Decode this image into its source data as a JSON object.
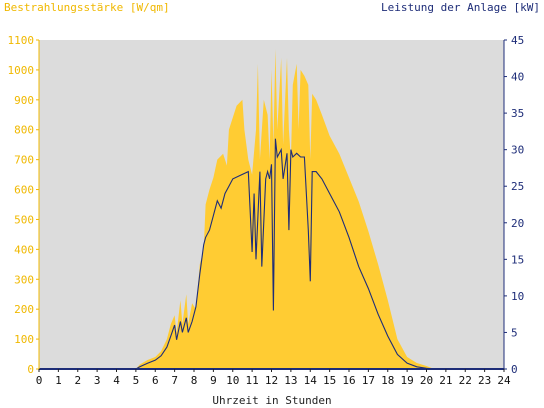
{
  "chart_data": {
    "type": "area",
    "left_axis_label": "Bestrahlungsstärke [W/qm]",
    "right_axis_label": "Leistung der Anlage [kW]",
    "xlabel": "Uhrzeit in Stunden",
    "xlim": [
      0,
      24
    ],
    "xticks": [
      "0",
      "1",
      "2",
      "3",
      "4",
      "5",
      "6",
      "7",
      "8",
      "9",
      "10",
      "11",
      "12",
      "13",
      "14",
      "15",
      "16",
      "17",
      "18",
      "19",
      "20",
      "21",
      "22",
      "23",
      "24"
    ],
    "ylim_left": [
      0,
      1100
    ],
    "yticks_left": [
      "0",
      "100",
      "200",
      "300",
      "400",
      "500",
      "600",
      "700",
      "800",
      "900",
      "1000",
      "1100"
    ],
    "ylim_right": [
      0,
      45
    ],
    "yticks_right": [
      "0",
      "5",
      "10",
      "15",
      "20",
      "25",
      "30",
      "35",
      "40",
      "45"
    ],
    "grid": false,
    "colors": {
      "irradiance": "#ffcc33",
      "power": "#1e2d78",
      "plot_bg": "#dcdcdc",
      "left_axis": "#f0b800",
      "right_axis": "#1e2d78"
    },
    "series": [
      {
        "name": "Bestrahlungsstärke [W/qm]",
        "axis": "left",
        "points": [
          [
            0,
            0
          ],
          [
            5.0,
            0
          ],
          [
            5.2,
            15
          ],
          [
            5.6,
            30
          ],
          [
            6.0,
            40
          ],
          [
            6.3,
            60
          ],
          [
            6.6,
            100
          ],
          [
            6.8,
            150
          ],
          [
            7.0,
            180
          ],
          [
            7.1,
            120
          ],
          [
            7.3,
            230
          ],
          [
            7.4,
            150
          ],
          [
            7.6,
            250
          ],
          [
            7.7,
            150
          ],
          [
            7.9,
            220
          ],
          [
            8.1,
            200
          ],
          [
            8.3,
            350
          ],
          [
            8.5,
            400
          ],
          [
            8.6,
            550
          ],
          [
            8.8,
            600
          ],
          [
            9.0,
            640
          ],
          [
            9.2,
            700
          ],
          [
            9.5,
            720
          ],
          [
            9.7,
            680
          ],
          [
            9.8,
            800
          ],
          [
            10.2,
            880
          ],
          [
            10.5,
            900
          ],
          [
            10.6,
            800
          ],
          [
            10.8,
            700
          ],
          [
            11.0,
            650
          ],
          [
            11.2,
            800
          ],
          [
            11.3,
            1020
          ],
          [
            11.4,
            700
          ],
          [
            11.6,
            900
          ],
          [
            11.8,
            850
          ],
          [
            11.9,
            700
          ],
          [
            12.0,
            1000
          ],
          [
            12.1,
            750
          ],
          [
            12.2,
            1070
          ],
          [
            12.3,
            800
          ],
          [
            12.5,
            1040
          ],
          [
            12.6,
            750
          ],
          [
            12.8,
            1040
          ],
          [
            12.9,
            800
          ],
          [
            13.0,
            700
          ],
          [
            13.1,
            950
          ],
          [
            13.3,
            1020
          ],
          [
            13.4,
            800
          ],
          [
            13.5,
            1000
          ],
          [
            13.7,
            980
          ],
          [
            13.9,
            950
          ],
          [
            14.0,
            700
          ],
          [
            14.1,
            920
          ],
          [
            14.3,
            900
          ],
          [
            14.6,
            850
          ],
          [
            15.0,
            780
          ],
          [
            15.5,
            720
          ],
          [
            16.0,
            640
          ],
          [
            16.5,
            560
          ],
          [
            17.0,
            460
          ],
          [
            17.5,
            350
          ],
          [
            18.0,
            230
          ],
          [
            18.5,
            100
          ],
          [
            19.0,
            40
          ],
          [
            19.5,
            20
          ],
          [
            20.0,
            10
          ],
          [
            20.4,
            0
          ],
          [
            24,
            0
          ]
        ]
      },
      {
        "name": "Leistung der Anlage [kW]",
        "axis": "right",
        "points": [
          [
            0,
            0
          ],
          [
            5.0,
            0
          ],
          [
            5.2,
            0.3
          ],
          [
            5.6,
            0.8
          ],
          [
            6.0,
            1.2
          ],
          [
            6.3,
            1.8
          ],
          [
            6.6,
            3.0
          ],
          [
            6.8,
            4.5
          ],
          [
            7.0,
            6.0
          ],
          [
            7.1,
            4.0
          ],
          [
            7.3,
            6.5
          ],
          [
            7.4,
            5.0
          ],
          [
            7.6,
            7.0
          ],
          [
            7.7,
            5.0
          ],
          [
            7.9,
            6.5
          ],
          [
            8.1,
            8.5
          ],
          [
            8.3,
            13
          ],
          [
            8.5,
            17
          ],
          [
            8.6,
            18
          ],
          [
            8.8,
            19
          ],
          [
            9.0,
            21
          ],
          [
            9.2,
            23
          ],
          [
            9.4,
            22
          ],
          [
            9.6,
            24
          ],
          [
            9.8,
            25
          ],
          [
            10.0,
            26
          ],
          [
            10.4,
            26.5
          ],
          [
            10.8,
            27
          ],
          [
            11.0,
            16
          ],
          [
            11.1,
            24
          ],
          [
            11.2,
            15
          ],
          [
            11.4,
            27
          ],
          [
            11.5,
            14
          ],
          [
            11.7,
            26
          ],
          [
            11.8,
            27
          ],
          [
            11.9,
            26
          ],
          [
            12.0,
            28
          ],
          [
            12.1,
            8
          ],
          [
            12.2,
            31.5
          ],
          [
            12.3,
            29
          ],
          [
            12.5,
            30
          ],
          [
            12.6,
            26
          ],
          [
            12.8,
            29.5
          ],
          [
            12.9,
            19
          ],
          [
            13.0,
            30
          ],
          [
            13.1,
            29
          ],
          [
            13.3,
            29.5
          ],
          [
            13.5,
            29
          ],
          [
            13.7,
            29
          ],
          [
            13.9,
            19
          ],
          [
            14.0,
            12
          ],
          [
            14.1,
            27
          ],
          [
            14.3,
            27
          ],
          [
            14.6,
            26
          ],
          [
            15.0,
            24
          ],
          [
            15.5,
            21.5
          ],
          [
            16.0,
            18
          ],
          [
            16.5,
            14
          ],
          [
            17.0,
            11
          ],
          [
            17.5,
            7.5
          ],
          [
            18.0,
            4.5
          ],
          [
            18.5,
            2
          ],
          [
            19.0,
            0.8
          ],
          [
            19.5,
            0.3
          ],
          [
            20.0,
            0.1
          ],
          [
            20.4,
            0
          ],
          [
            24,
            0
          ]
        ]
      }
    ]
  }
}
